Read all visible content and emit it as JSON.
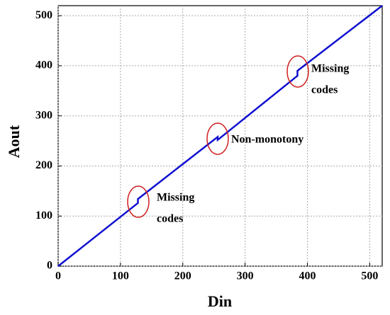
{
  "chart_data": {
    "type": "line",
    "x_label": "Din",
    "y_label": "Aout",
    "x": [
      0,
      128,
      128,
      256,
      256,
      384,
      384,
      520
    ],
    "series": [
      {
        "color": "#1010d0",
        "values": [
          0,
          126,
          134,
          258,
          252,
          380,
          390,
          520
        ]
      }
    ],
    "xlim": [
      0,
      520
    ],
    "ylim": [
      0,
      520
    ],
    "xticks": [
      0,
      100,
      200,
      300,
      400,
      500
    ],
    "yticks": [
      0,
      100,
      200,
      300,
      400,
      500
    ],
    "grid": true,
    "annotations": [
      [
        "Missing",
        "codes"
      ],
      [
        "Non-monotony"
      ],
      [
        "Missing",
        "codes"
      ]
    ]
  }
}
